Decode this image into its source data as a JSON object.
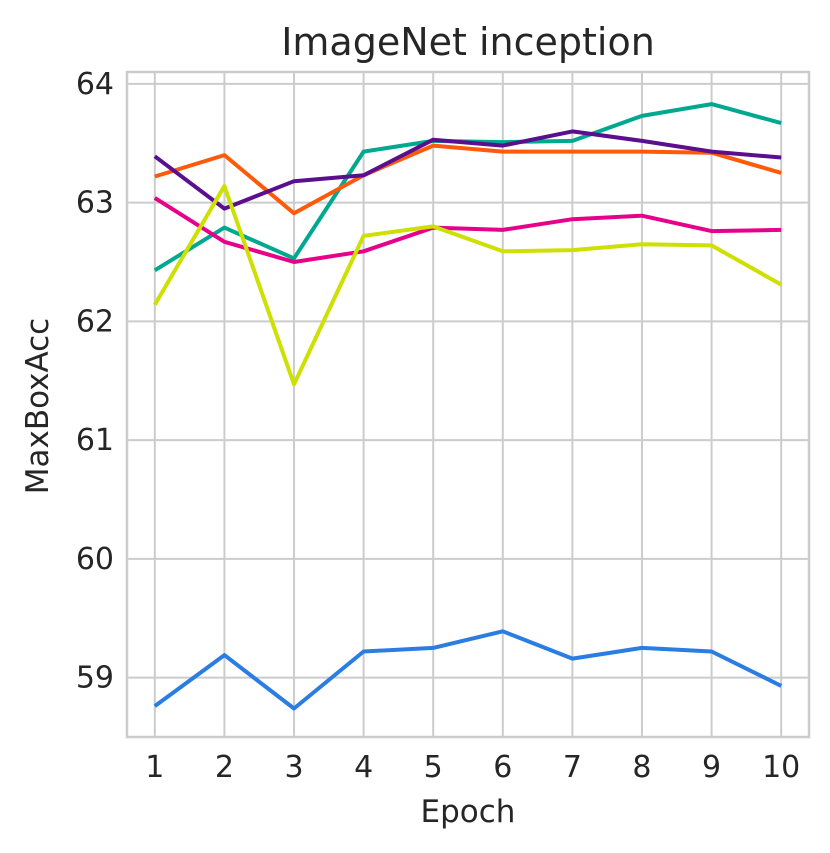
{
  "chart_data": {
    "type": "line",
    "title": "ImageNet inception",
    "xlabel": "Epoch",
    "ylabel": "MaxBoxAcc",
    "x": [
      1,
      2,
      3,
      4,
      5,
      6,
      7,
      8,
      9,
      10
    ],
    "xticks": [
      "1",
      "2",
      "3",
      "4",
      "5",
      "6",
      "7",
      "8",
      "9",
      "10"
    ],
    "yticks": [
      "59",
      "60",
      "61",
      "62",
      "63",
      "64"
    ],
    "xlim": [
      0.6,
      10.4
    ],
    "ylim": [
      58.5,
      64.1
    ],
    "grid": true,
    "legend": "none",
    "series": [
      {
        "color": "#2a7de1",
        "values": [
          58.76,
          59.19,
          58.74,
          59.22,
          59.25,
          59.39,
          59.16,
          59.25,
          59.22,
          58.93
        ]
      },
      {
        "color": "#00a88f",
        "values": [
          62.43,
          62.79,
          62.53,
          63.43,
          63.52,
          63.51,
          63.52,
          63.73,
          63.83,
          63.67
        ]
      },
      {
        "color": "#ff5a0a",
        "values": [
          63.22,
          63.4,
          62.91,
          63.23,
          63.48,
          63.43,
          63.43,
          63.43,
          63.42,
          63.25
        ]
      },
      {
        "color": "#5b0f8e",
        "values": [
          63.39,
          62.95,
          63.18,
          63.23,
          63.53,
          63.48,
          63.6,
          63.52,
          63.43,
          63.38
        ]
      },
      {
        "color": "#e6008a",
        "values": [
          63.04,
          62.67,
          62.5,
          62.59,
          62.79,
          62.77,
          62.86,
          62.89,
          62.76,
          62.77
        ]
      },
      {
        "color": "#cde000",
        "values": [
          62.14,
          63.14,
          61.47,
          62.72,
          62.8,
          62.59,
          62.6,
          62.65,
          62.64,
          62.31
        ]
      }
    ]
  }
}
